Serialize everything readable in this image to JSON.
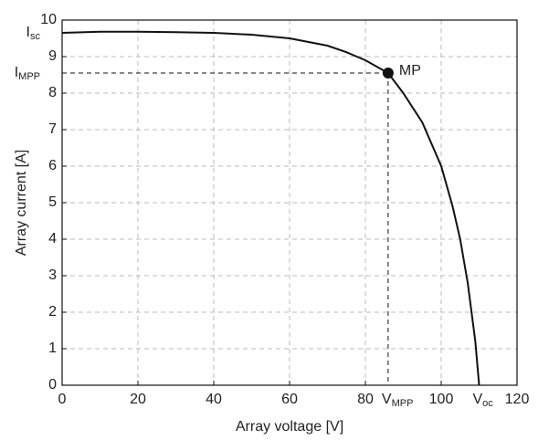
{
  "chart_data": {
    "type": "line",
    "xlabel": "Array voltage [V]",
    "ylabel": "Array current [A]",
    "x": [
      0,
      10,
      20,
      30,
      40,
      50,
      60,
      70,
      75,
      80,
      86,
      90,
      95,
      100,
      103,
      105,
      107,
      109,
      110
    ],
    "values": [
      9.65,
      9.68,
      9.68,
      9.67,
      9.65,
      9.6,
      9.5,
      9.3,
      9.12,
      8.9,
      8.55,
      8.0,
      7.2,
      6.0,
      4.9,
      4.0,
      2.8,
      1.2,
      0
    ],
    "color": "#111111",
    "xlim": [
      0,
      120
    ],
    "xticks": [
      0,
      20,
      40,
      60,
      80,
      100,
      120
    ],
    "ylim": [
      0,
      10
    ],
    "yticks": [
      0,
      1,
      2,
      3,
      4,
      5,
      6,
      7,
      8,
      9,
      10
    ],
    "grid": true,
    "mpp": {
      "label": "MP",
      "x": 86,
      "y": 8.55
    },
    "annotations": [
      {
        "label": "I",
        "sub": "sc",
        "y": 9.65
      },
      {
        "label": "I",
        "sub": "MPP",
        "y": 8.55
      },
      {
        "label": "V",
        "sub": "MPP",
        "x": 86
      },
      {
        "label": "V",
        "sub": "oc",
        "x": 110
      }
    ]
  }
}
